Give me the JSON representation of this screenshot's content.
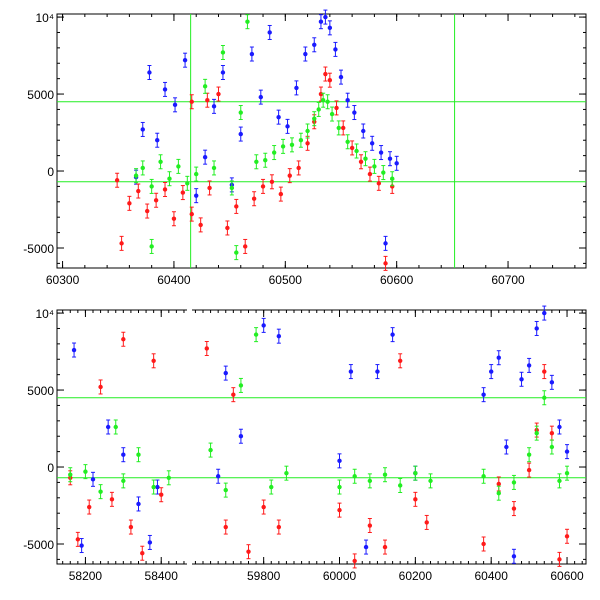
{
  "colors": {
    "blue": "#1a1aff",
    "red": "#ff1a1a",
    "green": "#22ee22",
    "reference_lines": "#22ee22",
    "axes": "#000000"
  },
  "chart_data": [
    {
      "type": "scatter",
      "panel": "top",
      "title": "",
      "xlabel": "",
      "ylabel": "",
      "xlim": [
        60295,
        60770
      ],
      "ylim": [
        -6300,
        10200
      ],
      "x_ticks": [
        "60300",
        "60400",
        "60500",
        "60600",
        "60700"
      ],
      "y_ticks": [
        "-5000",
        "0",
        "5000",
        "10⁴"
      ],
      "reference_lines": {
        "horizontal": [
          4500,
          -700
        ],
        "vertical": [
          60415,
          60652
        ]
      },
      "series": [
        {
          "color": "blue",
          "points": [
            [
              60366,
              -400
            ],
            [
              60372,
              2700
            ],
            [
              60378,
              6400
            ],
            [
              60385,
              2000
            ],
            [
              60392,
              5300
            ],
            [
              60401,
              4300
            ],
            [
              60410,
              7200
            ],
            [
              60420,
              -1600
            ],
            [
              60428,
              900
            ],
            [
              60436,
              4200
            ],
            [
              60444,
              6400
            ],
            [
              60452,
              -900
            ],
            [
              60460,
              2400
            ],
            [
              60470,
              7600
            ],
            [
              60478,
              4800
            ],
            [
              60486,
              9000
            ],
            [
              60494,
              3500
            ],
            [
              60502,
              2900
            ],
            [
              60510,
              5400
            ],
            [
              60518,
              7600
            ],
            [
              60526,
              8200
            ],
            [
              60532,
              9700
            ],
            [
              60536,
              10000
            ],
            [
              60540,
              9300
            ],
            [
              60545,
              7900
            ],
            [
              60550,
              6100
            ],
            [
              60556,
              4600
            ],
            [
              60562,
              3800
            ],
            [
              60570,
              2600
            ],
            [
              60578,
              1800
            ],
            [
              60586,
              1200
            ],
            [
              60594,
              800
            ],
            [
              60600,
              500
            ],
            [
              60590,
              -4700
            ]
          ]
        },
        {
          "color": "red",
          "points": [
            [
              60349,
              -600
            ],
            [
              60353,
              -4700
            ],
            [
              60360,
              -2100
            ],
            [
              60368,
              -1300
            ],
            [
              60376,
              -2600
            ],
            [
              60384,
              -1900
            ],
            [
              60392,
              -1200
            ],
            [
              60400,
              -3100
            ],
            [
              60408,
              -1400
            ],
            [
              60416,
              -2800
            ],
            [
              60424,
              -3500
            ],
            [
              60432,
              -1100
            ],
            [
              60440,
              5000
            ],
            [
              60448,
              -3700
            ],
            [
              60456,
              -2300
            ],
            [
              60464,
              -4900
            ],
            [
              60472,
              -1800
            ],
            [
              60480,
              -1000
            ],
            [
              60488,
              -700
            ],
            [
              60496,
              -1500
            ],
            [
              60504,
              -300
            ],
            [
              60512,
              200
            ],
            [
              60520,
              1800
            ],
            [
              60526,
              3200
            ],
            [
              60532,
              5000
            ],
            [
              60536,
              6300
            ],
            [
              60540,
              5900
            ],
            [
              60546,
              4100
            ],
            [
              60552,
              2800
            ],
            [
              60560,
              1500
            ],
            [
              60568,
              600
            ],
            [
              60576,
              -200
            ],
            [
              60584,
              -800
            ],
            [
              60590,
              -6000
            ],
            [
              60596,
              -1000
            ],
            [
              60416,
              4500
            ],
            [
              60430,
              4600
            ]
          ]
        },
        {
          "color": "green",
          "points": [
            [
              60366,
              -300
            ],
            [
              60372,
              200
            ],
            [
              60380,
              -1000
            ],
            [
              60388,
              600
            ],
            [
              60396,
              -500
            ],
            [
              60404,
              300
            ],
            [
              60412,
              -800
            ],
            [
              60420,
              -200
            ],
            [
              60428,
              5500
            ],
            [
              60436,
              200
            ],
            [
              60444,
              7700
            ],
            [
              60452,
              -1100
            ],
            [
              60460,
              3800
            ],
            [
              60466,
              9700
            ],
            [
              60474,
              600
            ],
            [
              60482,
              700
            ],
            [
              60490,
              1200
            ],
            [
              60498,
              1600
            ],
            [
              60506,
              1700
            ],
            [
              60514,
              2000
            ],
            [
              60520,
              2600
            ],
            [
              60526,
              3400
            ],
            [
              60530,
              4000
            ],
            [
              60534,
              4600
            ],
            [
              60538,
              4500
            ],
            [
              60542,
              3700
            ],
            [
              60548,
              2800
            ],
            [
              60556,
              1900
            ],
            [
              60564,
              1300
            ],
            [
              60572,
              800
            ],
            [
              60580,
              300
            ],
            [
              60588,
              -100
            ],
            [
              60596,
              -500
            ],
            [
              60380,
              -4900
            ],
            [
              60456,
              -5300
            ]
          ]
        }
      ]
    },
    {
      "type": "scatter",
      "panel": "bottom",
      "title": "",
      "xlabel": "",
      "ylabel": "",
      "x_ticks": [
        "58200",
        "58400",
        "59800",
        "60000",
        "60200",
        "60400",
        "60600"
      ],
      "y_ticks": [
        "-5000",
        "0",
        "5000",
        "10⁴"
      ],
      "ylim": [
        -6300,
        10200
      ],
      "broken_axis": true,
      "segments": [
        {
          "xlim": [
            58125,
            58468
          ]
        },
        {
          "xlim": [
            59611,
            60650
          ]
        }
      ],
      "reference_lines": {
        "horizontal": [
          4500,
          -700
        ]
      },
      "series": [
        {
          "color": "blue",
          "points": [
            [
              58170,
              7600
            ],
            [
              58190,
              -5100
            ],
            [
              58220,
              -800
            ],
            [
              58260,
              2600
            ],
            [
              58300,
              800
            ],
            [
              58340,
              -2400
            ],
            [
              58370,
              -4900
            ],
            [
              58390,
              -1300
            ],
            [
              59680,
              -600
            ],
            [
              59700,
              6100
            ],
            [
              59740,
              2000
            ],
            [
              59800,
              9200
            ],
            [
              59840,
              8500
            ],
            [
              60000,
              400
            ],
            [
              60030,
              6200
            ],
            [
              60070,
              -5200
            ],
            [
              60100,
              6200
            ],
            [
              60140,
              8600
            ],
            [
              60200,
              -400
            ],
            [
              60380,
              4700
            ],
            [
              60400,
              6200
            ],
            [
              60420,
              7100
            ],
            [
              60440,
              1300
            ],
            [
              60460,
              -5800
            ],
            [
              60480,
              5700
            ],
            [
              60500,
              6600
            ],
            [
              60520,
              9000
            ],
            [
              60540,
              10000
            ],
            [
              60560,
              5500
            ],
            [
              60580,
              2600
            ],
            [
              60600,
              1000
            ]
          ]
        },
        {
          "color": "red",
          "points": [
            [
              58160,
              -700
            ],
            [
              58180,
              -4700
            ],
            [
              58210,
              -2600
            ],
            [
              58240,
              5200
            ],
            [
              58270,
              -2100
            ],
            [
              58300,
              8300
            ],
            [
              58320,
              -3900
            ],
            [
              58350,
              -5600
            ],
            [
              58380,
              6900
            ],
            [
              58400,
              -1800
            ],
            [
              59650,
              7700
            ],
            [
              59700,
              -3900
            ],
            [
              59720,
              4700
            ],
            [
              59760,
              -5500
            ],
            [
              59800,
              -2600
            ],
            [
              59840,
              -3900
            ],
            [
              60000,
              -2800
            ],
            [
              60040,
              -6100
            ],
            [
              60080,
              -3800
            ],
            [
              60120,
              -5200
            ],
            [
              60160,
              6900
            ],
            [
              60200,
              -2100
            ],
            [
              60230,
              -3600
            ],
            [
              60380,
              -5000
            ],
            [
              60420,
              -1100
            ],
            [
              60460,
              -2700
            ],
            [
              60500,
              -200
            ],
            [
              60520,
              2400
            ],
            [
              60540,
              6200
            ],
            [
              60560,
              2200
            ],
            [
              60580,
              -6000
            ],
            [
              60600,
              -4500
            ]
          ]
        },
        {
          "color": "green",
          "points": [
            [
              58160,
              -500
            ],
            [
              58200,
              -300
            ],
            [
              58240,
              -1600
            ],
            [
              58280,
              2600
            ],
            [
              58300,
              -900
            ],
            [
              58340,
              800
            ],
            [
              58380,
              -1300
            ],
            [
              58420,
              -700
            ],
            [
              59660,
              1100
            ],
            [
              59700,
              -1500
            ],
            [
              59740,
              5300
            ],
            [
              59780,
              8600
            ],
            [
              59820,
              -1300
            ],
            [
              59860,
              -400
            ],
            [
              60000,
              -1300
            ],
            [
              60040,
              -600
            ],
            [
              60080,
              -900
            ],
            [
              60120,
              -500
            ],
            [
              60160,
              -1200
            ],
            [
              60200,
              -400
            ],
            [
              60240,
              -900
            ],
            [
              60380,
              -600
            ],
            [
              60420,
              -1700
            ],
            [
              60460,
              -1000
            ],
            [
              60500,
              800
            ],
            [
              60520,
              2200
            ],
            [
              60540,
              4500
            ],
            [
              60560,
              1300
            ],
            [
              60580,
              -900
            ],
            [
              60600,
              -400
            ]
          ]
        }
      ]
    }
  ]
}
